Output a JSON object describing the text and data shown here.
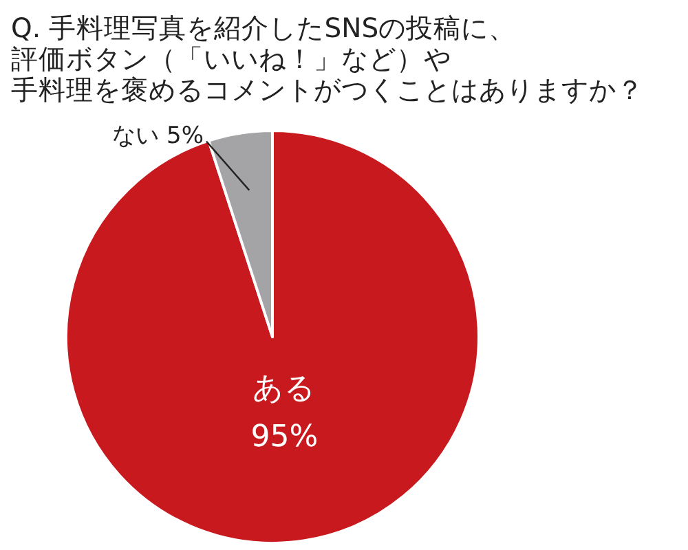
{
  "chart_data": {
    "type": "pie",
    "title": "Q. 手料理写真を紹介したSNSの投稿に、評価ボタン（「いいね！」など）や手料理を褒めるコメントがつくことはありますか？",
    "categories": [
      "ある",
      "ない"
    ],
    "values": [
      95,
      5
    ],
    "colors": [
      "#c81a1e",
      "#a4a4a7"
    ],
    "value_labels": [
      "95%",
      "5%"
    ]
  }
}
